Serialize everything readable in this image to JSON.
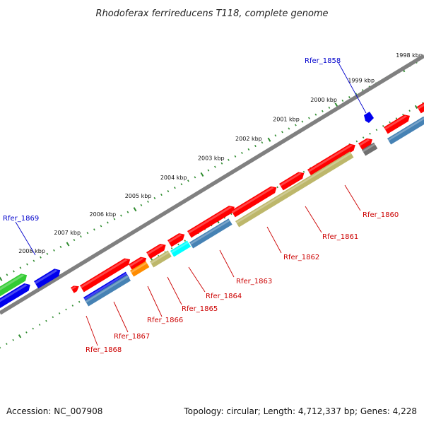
{
  "title": "Rhodoferax ferrireducens T118, complete genome",
  "footer": {
    "accession": "Accession: NC_007908",
    "summary": "Topology: circular; Length: 4,712,337 bp; Genes: 4,228"
  },
  "ruler": [
    {
      "label": "1998 kbp",
      "t": 0.98
    },
    {
      "label": "1999 kbp",
      "t": 0.865
    },
    {
      "label": "2000 kbp",
      "t": 0.775
    },
    {
      "label": "2001 kbp",
      "t": 0.685
    },
    {
      "label": "2002 kbp",
      "t": 0.595
    },
    {
      "label": "2003 kbp",
      "t": 0.505
    },
    {
      "label": "2004 kbp",
      "t": 0.415
    },
    {
      "label": "2005 kbp",
      "t": 0.33
    },
    {
      "label": "2006 kbp",
      "t": 0.245
    },
    {
      "label": "2007 kbp",
      "t": 0.16
    },
    {
      "label": "2008 kbp",
      "t": 0.075
    }
  ],
  "labels": [
    {
      "text": "Rfer_1858",
      "color": "#0000cc",
      "strand": "forward"
    },
    {
      "text": "Rfer_1869",
      "color": "#0000cc",
      "strand": "forward"
    },
    {
      "text": "Rfer_1860",
      "color": "#cc0000",
      "strand": "reverse"
    },
    {
      "text": "Rfer_1861",
      "color": "#cc0000",
      "strand": "reverse"
    },
    {
      "text": "Rfer_1862",
      "color": "#cc0000",
      "strand": "reverse"
    },
    {
      "text": "Rfer_1863",
      "color": "#cc0000",
      "strand": "reverse"
    },
    {
      "text": "Rfer_1864",
      "color": "#cc0000",
      "strand": "reverse"
    },
    {
      "text": "Rfer_1865",
      "color": "#cc0000",
      "strand": "reverse"
    },
    {
      "text": "Rfer_1866",
      "color": "#cc0000",
      "strand": "reverse"
    },
    {
      "text": "Rfer_1867",
      "color": "#cc0000",
      "strand": "reverse"
    },
    {
      "text": "Rfer_1868",
      "color": "#cc0000",
      "strand": "reverse"
    }
  ],
  "colors": {
    "backbone": "#808080",
    "ruler_ticks": "#2e8b2e",
    "cds_red": "#ff0000",
    "cds_blue": "#0000ee",
    "cds_green": "#33cc33",
    "cds_steel": "#4682b4",
    "cds_khaki": "#bdb76b",
    "cds_orange": "#ff8c00",
    "cds_cyan": "#00ffff",
    "cds_gray": "#707070"
  }
}
